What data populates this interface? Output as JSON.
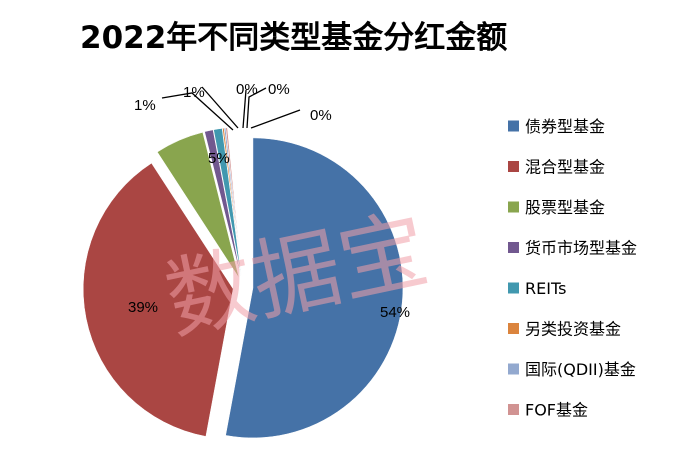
{
  "chart_data": {
    "type": "pie",
    "title": "2022年不同类型基金分红金额",
    "categories": [
      "债券型基金",
      "混合型基金",
      "股票型基金",
      "货币市场型基金",
      "REITs",
      "另类投资基金",
      "国际(QDII)基金",
      "FOF基金"
    ],
    "values": [
      54,
      39,
      5,
      1,
      1,
      0,
      0,
      0
    ],
    "data_labels": [
      "54%",
      "39%",
      "5%",
      "1%",
      "1%",
      "0%",
      "0%",
      "0%"
    ],
    "colors": [
      "#4572a7",
      "#aa4643",
      "#89a54e",
      "#71588f",
      "#4198af",
      "#db843d",
      "#93a9cf",
      "#d19392"
    ],
    "exploded": true,
    "legend_position": "right"
  },
  "watermark": "数据宝"
}
